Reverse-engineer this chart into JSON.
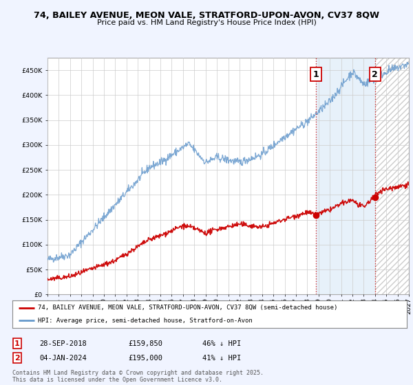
{
  "title_line1": "74, BAILEY AVENUE, MEON VALE, STRATFORD-UPON-AVON, CV37 8QW",
  "title_line2": "Price paid vs. HM Land Registry's House Price Index (HPI)",
  "background_color": "#f0f4ff",
  "plot_bg_color": "#ffffff",
  "red_color": "#cc0000",
  "blue_color": "#6699cc",
  "marker1_date": "28-SEP-2018",
  "marker1_value": 159850,
  "marker1_label": "46% ↓ HPI",
  "marker2_date": "04-JAN-2024",
  "marker2_value": 195000,
  "marker2_label": "41% ↓ HPI",
  "legend_label_red": "74, BAILEY AVENUE, MEON VALE, STRATFORD-UPON-AVON, CV37 8QW (semi-detached house)",
  "legend_label_blue": "HPI: Average price, semi-detached house, Stratford-on-Avon",
  "footer_text": "Contains HM Land Registry data © Crown copyright and database right 2025.\nThis data is licensed under the Open Government Licence v3.0.",
  "ylim": [
    0,
    475000
  ],
  "yticks": [
    0,
    50000,
    100000,
    150000,
    200000,
    250000,
    300000,
    350000,
    400000,
    450000
  ],
  "xmin": 1995,
  "xmax": 2027,
  "marker1_x_year": 2018.75,
  "marker2_x_year": 2024.0,
  "noise_seed": 42
}
